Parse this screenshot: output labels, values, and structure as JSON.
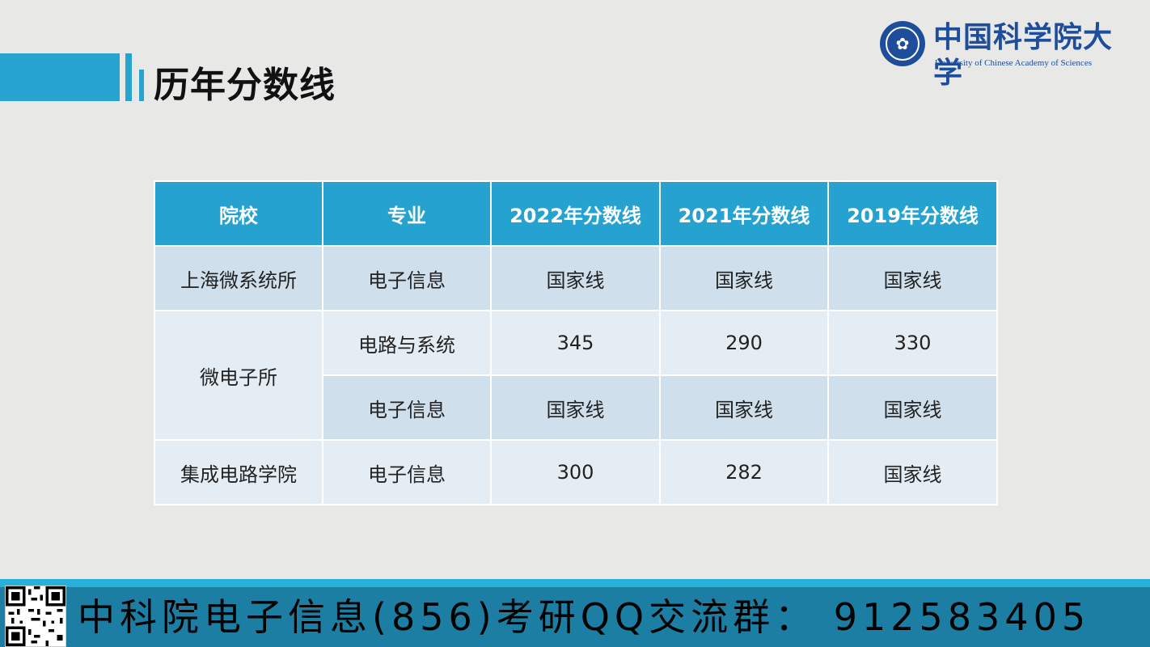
{
  "page": {
    "title": "历年分数线"
  },
  "logo": {
    "seal_icon": "ucas-seal-icon",
    "name_cn": "中国科学院大学",
    "name_en": "University of Chinese Academy of Sciences"
  },
  "table": {
    "headers": [
      "院校",
      "专业",
      "2022年分数线",
      "2021年分数线",
      "2019年分数线"
    ],
    "rows": [
      {
        "school": "上海微系统所",
        "major": "电子信息",
        "y2022": "国家线",
        "y2021": "国家线",
        "y2019": "国家线"
      },
      {
        "school": "微电子所",
        "major": "电路与系统",
        "y2022": "345",
        "y2021": "290",
        "y2019": "330"
      },
      {
        "school": "",
        "major": "电子信息",
        "y2022": "国家线",
        "y2021": "国家线",
        "y2019": "国家线"
      },
      {
        "school": "集成电路学院",
        "major": "电子信息",
        "y2022": "300",
        "y2021": "282",
        "y2019": "国家线"
      }
    ]
  },
  "footer": {
    "text": "中科院电子信息(856)考研QQ交流群：  912583405",
    "qr_icon": "qr-code-icon"
  },
  "colors": {
    "accent": "#27a3cf",
    "header_bg": "#25a2cf",
    "row_dark": "#cfe0ec",
    "row_light": "#e4edf4",
    "footer_bg": "#1c7ea2",
    "logo_blue": "#1e4d9b"
  }
}
